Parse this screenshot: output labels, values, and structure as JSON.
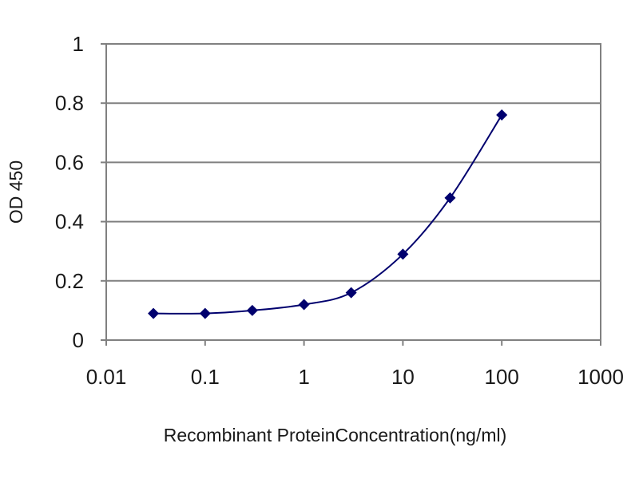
{
  "chart_data": {
    "type": "line",
    "title": "",
    "xlabel": "Recombinant ProteinConcentration(ng/ml)",
    "ylabel": "OD 450",
    "xscale": "log",
    "xlim": [
      0.01,
      1000
    ],
    "ylim": [
      0,
      1
    ],
    "x_ticks": [
      0.01,
      0.1,
      1,
      10,
      100,
      1000
    ],
    "x_tick_labels": [
      "0.01",
      "0.1",
      "1",
      "10",
      "100",
      "1000"
    ],
    "y_ticks": [
      0,
      0.2,
      0.4,
      0.6,
      0.8,
      1
    ],
    "y_tick_labels": [
      "0",
      "0.2",
      "0.4",
      "0.6",
      "0.8",
      "1"
    ],
    "grid": "horizontal",
    "legend": "none",
    "series": [
      {
        "x": [
          0.03,
          0.1,
          0.3,
          1,
          3,
          10,
          30,
          100
        ],
        "y": [
          0.09,
          0.09,
          0.1,
          0.12,
          0.16,
          0.29,
          0.48,
          0.76
        ],
        "color": "#00006e"
      }
    ],
    "colors": {
      "background": "#ffffff",
      "plot_border": "#808080",
      "grid": "#808080",
      "series": "#00006e"
    }
  }
}
